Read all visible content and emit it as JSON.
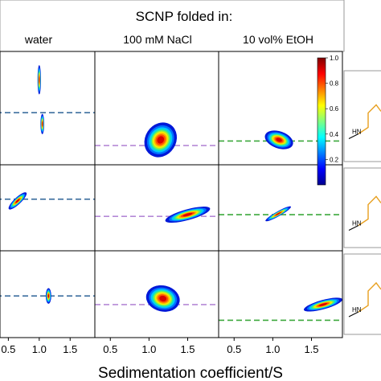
{
  "chart_data": {
    "type": "heatmap",
    "title": "SCNP folded in:",
    "columns": [
      "water",
      "100 mM NaCl",
      "10 vol% EtOH"
    ],
    "xlabel": "Sedimentation coefficient/S",
    "x_ticks": [
      0.5,
      1.0,
      1.5
    ],
    "x_tick_labels": [
      "0.5",
      "1.0",
      "1.5"
    ],
    "x_range": [
      0.3,
      1.9
    ],
    "colorbar": {
      "range": [
        0.0,
        1.0
      ],
      "ticks": [
        0.2,
        0.4,
        0.6,
        0.8,
        1.0
      ],
      "tick_labels": [
        "0.2",
        "0.4",
        "0.6",
        "0.8",
        "1.0"
      ],
      "colormap": "jet"
    },
    "levels": [
      0.1,
      0.2,
      0.3,
      0.4,
      0.5,
      0.6,
      0.7,
      0.8,
      0.9
    ],
    "level_colors": [
      "#0018d8",
      "#0070ff",
      "#00c8ff",
      "#20e8a8",
      "#90f040",
      "#f4f000",
      "#ffa800",
      "#ff5000",
      "#d80000"
    ],
    "line_colors": [
      "#3d6f9f",
      "#b589d6",
      "#3ca83c"
    ],
    "cells": [
      {
        "row": 1,
        "column": "water",
        "reference_line_y": 0.46,
        "peaks": [
          {
            "s": 1.0,
            "y": 0.75,
            "sx": 0.028,
            "sy": 0.13
          },
          {
            "s": 1.05,
            "y": 0.36,
            "sx": 0.03,
            "sy": 0.09
          }
        ]
      },
      {
        "row": 1,
        "column": "100 mM NaCl",
        "reference_line_y": 0.17,
        "peaks": [
          {
            "s": 1.15,
            "y": 0.22,
            "sx": 0.2,
            "sy": 0.16,
            "rho": -0.55
          }
        ]
      },
      {
        "row": 1,
        "column": "10 vol% EtOH",
        "reference_line_y": 0.21,
        "peaks": [
          {
            "s": 1.08,
            "y": 0.22,
            "sx": 0.19,
            "sy": 0.075,
            "rho": -0.6
          }
        ]
      },
      {
        "row": 2,
        "column": "water",
        "reference_line_y": 0.6,
        "peaks": [
          {
            "s": 0.65,
            "y": 0.58,
            "sx": 0.055,
            "sy": 0.14,
            "rho": -0.3
          }
        ]
      },
      {
        "row": 2,
        "column": "100 mM NaCl",
        "reference_line_y": 0.4,
        "peaks": [
          {
            "s": 1.5,
            "y": 0.42,
            "sx": 0.07,
            "sy": 0.27,
            "rho": -0.85
          }
        ]
      },
      {
        "row": 2,
        "column": "10 vol% EtOH",
        "reference_line_y": 0.42,
        "peaks": [
          {
            "s": 1.07,
            "y": 0.43,
            "sx": 0.032,
            "sy": 0.17,
            "rho": -0.3
          }
        ]
      },
      {
        "row": 3,
        "column": "water",
        "reference_line_y": 0.48,
        "peaks": [
          {
            "s": 1.15,
            "y": 0.48,
            "sx": 0.045,
            "sy": 0.09
          }
        ]
      },
      {
        "row": 3,
        "column": "100 mM NaCl",
        "reference_line_y": 0.38,
        "peaks": [
          {
            "s": 1.18,
            "y": 0.45,
            "sx": 0.22,
            "sy": 0.15,
            "rho": -0.3
          }
        ]
      },
      {
        "row": 3,
        "column": "10 vol% EtOH",
        "reference_line_y": 0.2,
        "peaks": [
          {
            "s": 1.65,
            "y": 0.38,
            "sx": 0.06,
            "sy": 0.23,
            "rho": -0.85
          }
        ]
      }
    ],
    "structures": [
      {
        "label": "HN"
      },
      {
        "label": "HN"
      },
      {
        "label": "HN"
      }
    ]
  }
}
